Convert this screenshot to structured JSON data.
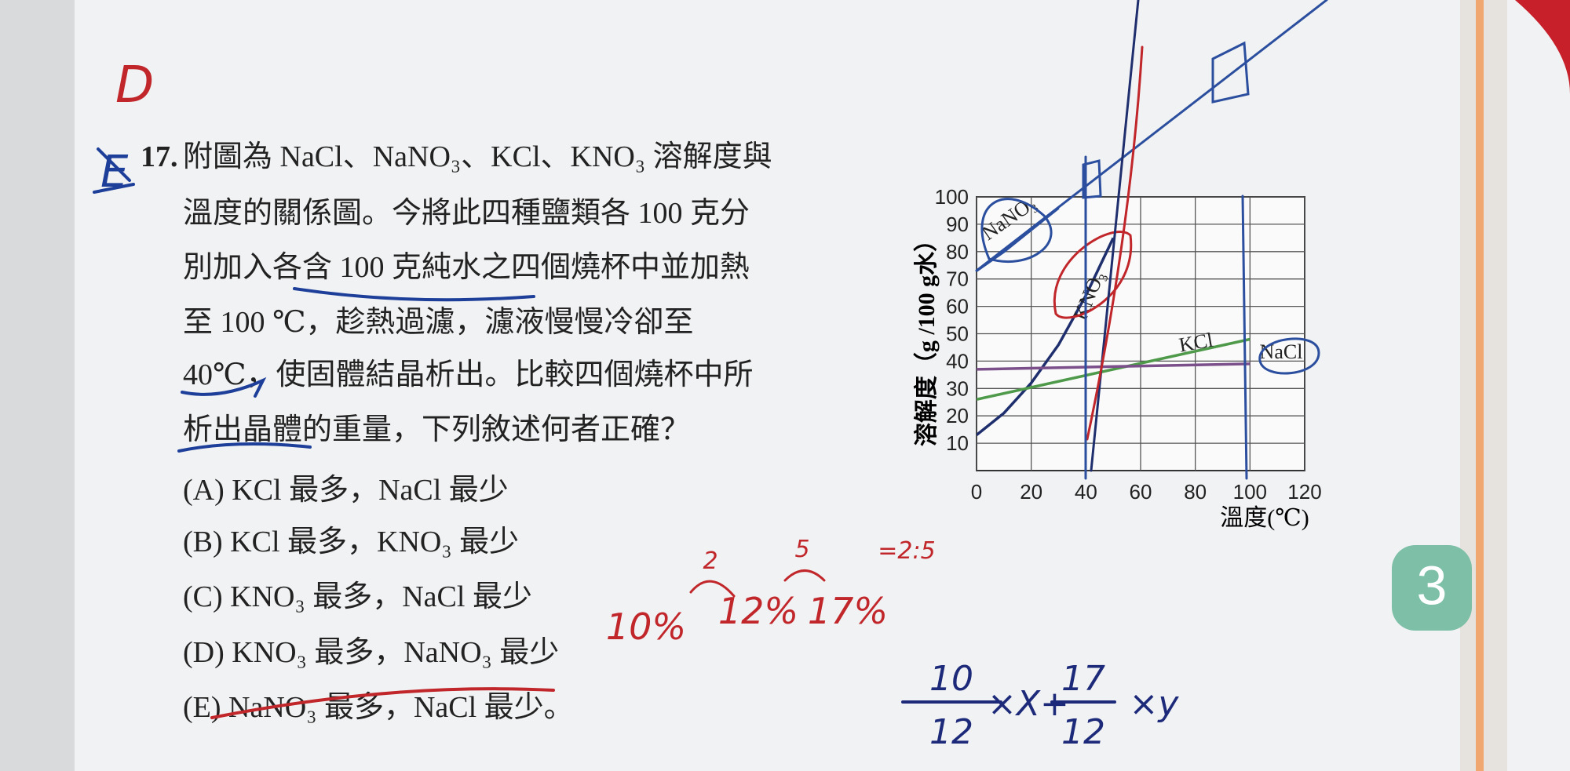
{
  "header": {
    "number": "17."
  },
  "question": {
    "lines": [
      "附圖為 NaCl、NaNO₃、KCl、KNO₃ 溶解度與",
      "溫度的關係圖。今將此四種鹽類各 100 克分",
      "別加入各含 100 克純水之四個燒杯中並加熱",
      "至 100 ℃，趁熱過濾，濾液慢慢冷卻至",
      "40℃，使固體結晶析出。比較四個燒杯中所",
      "析出晶體的重量，下列敘述何者正確？"
    ]
  },
  "options": [
    "(A) KCl 最多，NaCl 最少",
    "(B) KCl 最多，KNO₃ 最少",
    "(C) KNO₃ 最多，NaCl 最少",
    "(D) KNO₃ 最多，NaNO₃ 最少",
    "(E) NaNO₃ 最多，NaCl 最少。"
  ],
  "chart_data": {
    "type": "line",
    "ylabel": "溶解度（g /100 g水）",
    "xlabel": "溫度(℃)",
    "xlim": [
      0,
      120
    ],
    "ylim": [
      0,
      100
    ],
    "xticks": [
      0,
      20,
      40,
      60,
      80,
      100,
      120
    ],
    "yticks": [
      10,
      20,
      30,
      40,
      50,
      60,
      70,
      80,
      90,
      100
    ],
    "grid": true,
    "series": [
      {
        "name": "NaNO₃",
        "color": "#2b4f9e",
        "x": [
          0,
          10,
          20,
          30
        ],
        "values": [
          73,
          80,
          88,
          96
        ]
      },
      {
        "name": "KNO₃",
        "color": "#1f2f6e",
        "x": [
          0,
          10,
          20,
          30,
          40,
          50
        ],
        "values": [
          13,
          21,
          32,
          46,
          64,
          85
        ]
      },
      {
        "name": "KCl",
        "color": "#4e9a4a",
        "x": [
          0,
          100
        ],
        "values": [
          26,
          48
        ]
      },
      {
        "name": "NaCl",
        "color": "#7a4f8a",
        "x": [
          0,
          100
        ],
        "values": [
          37,
          39
        ]
      }
    ]
  },
  "annotations": {
    "margin": [
      "D",
      "E"
    ],
    "percents": [
      "10%",
      "12%",
      "17%"
    ],
    "differences": [
      "2",
      "5"
    ],
    "ratio": "=2:5",
    "equation": {
      "num1": "10",
      "den1": "12",
      "mid": "×X+",
      "num2": "17",
      "den2": "12",
      "end": "×y"
    }
  },
  "tab": "3"
}
